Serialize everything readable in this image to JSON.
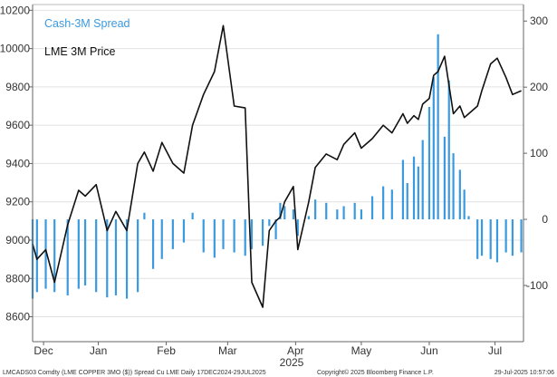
{
  "chart_data": {
    "type": "bar+line",
    "x_range": [
      "2024-12-17",
      "2025-07-29"
    ],
    "month_labels": [
      "Dec",
      "Jan",
      "Feb",
      "Mar",
      "Apr",
      "May",
      "Jun",
      "Jul"
    ],
    "month_positions": [
      "2024-12-22",
      "2025-01-16",
      "2025-02-16",
      "2025-03-16",
      "2025-04-16",
      "2025-05-16",
      "2025-06-16",
      "2025-07-16"
    ],
    "year_label": "2025",
    "left_axis": {
      "ticks": [
        8600,
        8800,
        9000,
        9200,
        9400,
        9600,
        9800,
        10000,
        10200
      ],
      "range": [
        8470,
        10230
      ]
    },
    "right_axis": {
      "ticks": [
        -100,
        0,
        100,
        200,
        300
      ],
      "range": [
        -185,
        325
      ]
    },
    "legend": [
      {
        "label": "Cash-3M Spread",
        "color": "#3a9ae0"
      },
      {
        "label": "LME 3M Price",
        "color": "#111111"
      }
    ],
    "series": [
      {
        "name": "Cash-3M Spread",
        "kind": "bar",
        "axis": "right",
        "color": "#3a9ae0",
        "x": [
          "2024-12-17",
          "2024-12-19",
          "2024-12-23",
          "2024-12-27",
          "2025-01-02",
          "2025-01-07",
          "2025-01-10",
          "2025-01-15",
          "2025-01-20",
          "2025-01-24",
          "2025-01-29",
          "2025-02-03",
          "2025-02-06",
          "2025-02-10",
          "2025-02-14",
          "2025-02-19",
          "2025-02-24",
          "2025-02-28",
          "2025-03-05",
          "2025-03-10",
          "2025-03-14",
          "2025-03-19",
          "2025-03-24",
          "2025-03-27",
          "2025-04-01",
          "2025-04-04",
          "2025-04-07",
          "2025-04-09",
          "2025-04-11",
          "2025-04-15",
          "2025-04-17",
          "2025-04-22",
          "2025-04-25",
          "2025-04-30",
          "2025-05-05",
          "2025-05-08",
          "2025-05-13",
          "2025-05-16",
          "2025-05-21",
          "2025-05-26",
          "2025-05-30",
          "2025-06-04",
          "2025-06-06",
          "2025-06-09",
          "2025-06-11",
          "2025-06-13",
          "2025-06-16",
          "2025-06-18",
          "2025-06-20",
          "2025-06-23",
          "2025-06-25",
          "2025-06-27",
          "2025-06-30",
          "2025-07-02",
          "2025-07-04",
          "2025-07-08",
          "2025-07-10",
          "2025-07-14",
          "2025-07-17",
          "2025-07-21",
          "2025-07-24",
          "2025-07-28"
        ],
        "values": [
          -120,
          -110,
          -105,
          -110,
          -115,
          -105,
          -100,
          -110,
          -118,
          -115,
          -120,
          -110,
          10,
          -75,
          -60,
          -45,
          -35,
          10,
          -50,
          -58,
          -45,
          -50,
          -55,
          -45,
          -40,
          -10,
          -30,
          25,
          20,
          15,
          -25,
          5,
          30,
          25,
          15,
          20,
          25,
          15,
          35,
          50,
          45,
          90,
          55,
          95,
          80,
          120,
          170,
          215,
          280,
          125,
          210,
          100,
          75,
          45,
          5,
          -60,
          -55,
          -60,
          -65,
          -50,
          -55,
          -50
        ]
      },
      {
        "name": "LME 3M Price",
        "kind": "line",
        "axis": "left",
        "color": "#111111",
        "x": [
          "2024-12-17",
          "2024-12-19",
          "2024-12-23",
          "2024-12-27",
          "2025-01-02",
          "2025-01-07",
          "2025-01-10",
          "2025-01-15",
          "2025-01-20",
          "2025-01-24",
          "2025-01-29",
          "2025-02-03",
          "2025-02-06",
          "2025-02-10",
          "2025-02-14",
          "2025-02-19",
          "2025-02-24",
          "2025-02-28",
          "2025-03-05",
          "2025-03-10",
          "2025-03-14",
          "2025-03-19",
          "2025-03-24",
          "2025-03-27",
          "2025-04-01",
          "2025-04-04",
          "2025-04-07",
          "2025-04-09",
          "2025-04-11",
          "2025-04-15",
          "2025-04-17",
          "2025-04-22",
          "2025-04-25",
          "2025-04-30",
          "2025-05-05",
          "2025-05-08",
          "2025-05-13",
          "2025-05-16",
          "2025-05-21",
          "2025-05-26",
          "2025-05-30",
          "2025-06-04",
          "2025-06-06",
          "2025-06-09",
          "2025-06-11",
          "2025-06-13",
          "2025-06-16",
          "2025-06-18",
          "2025-06-20",
          "2025-06-23",
          "2025-06-25",
          "2025-06-27",
          "2025-06-30",
          "2025-07-02",
          "2025-07-04",
          "2025-07-08",
          "2025-07-10",
          "2025-07-14",
          "2025-07-17",
          "2025-07-21",
          "2025-07-24",
          "2025-07-28"
        ],
        "values": [
          8980,
          8900,
          8950,
          8780,
          9080,
          9260,
          9230,
          9290,
          9050,
          9150,
          9050,
          9400,
          9460,
          9360,
          9510,
          9400,
          9350,
          9600,
          9760,
          9880,
          10120,
          9700,
          9690,
          8780,
          8650,
          9050,
          9100,
          9120,
          9200,
          9280,
          8950,
          9200,
          9380,
          9450,
          9420,
          9500,
          9560,
          9480,
          9530,
          9600,
          9560,
          9660,
          9610,
          9650,
          9630,
          9710,
          9740,
          9860,
          9880,
          9960,
          9810,
          9660,
          9700,
          9640,
          9660,
          9700,
          9780,
          9920,
          9950,
          9850,
          9760,
          9780
        ]
      }
    ]
  },
  "footer": {
    "left": "LMCADS03 Comdty (LME COPPER     3MO ($)) Spread Cu LME  Daily 17DEC2024-29JUL2025",
    "center": "Copyright© 2025 Bloomberg Finance L.P.",
    "right": "29-Jul-2025 10:57:06"
  }
}
